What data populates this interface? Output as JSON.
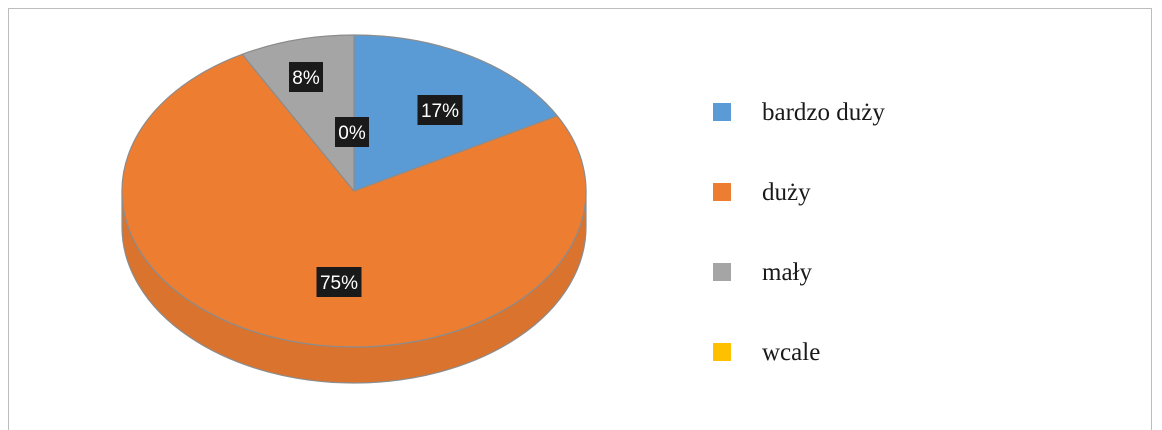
{
  "chart_data": {
    "type": "pie",
    "title": "",
    "categories": [
      "bardzo duży",
      "duży",
      "mały",
      "wcale"
    ],
    "values": [
      17,
      75,
      8,
      0
    ],
    "labels": [
      "17%",
      "75%",
      "8%",
      "0%"
    ],
    "colors": [
      "#5b9bd5",
      "#ed7d31",
      "#a5a5a5",
      "#ffc000"
    ],
    "legend_position": "right",
    "three_d": true
  }
}
